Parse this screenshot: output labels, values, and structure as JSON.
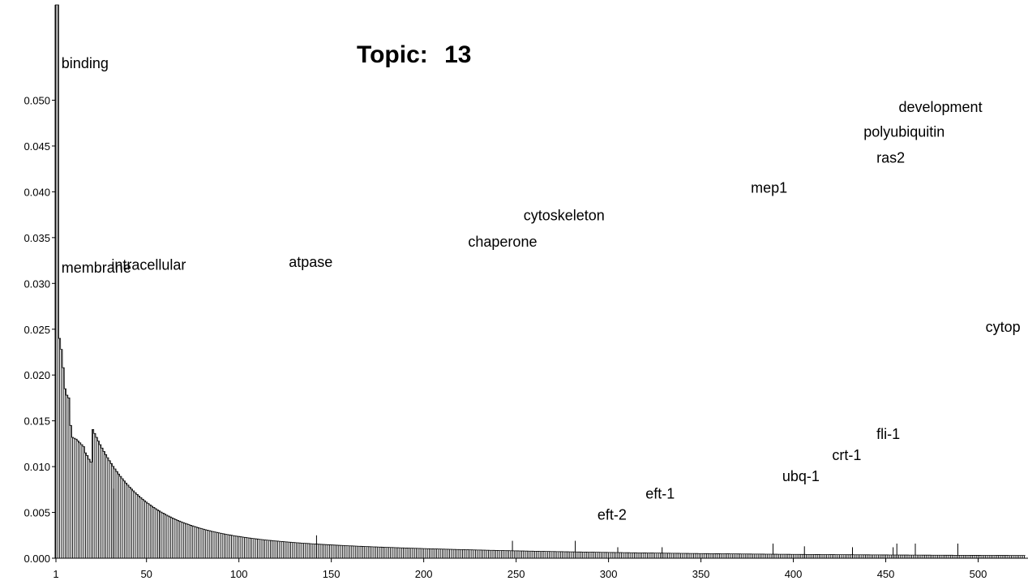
{
  "chart_data": {
    "type": "bar",
    "title_prefix": "Topic:",
    "title_number": "13",
    "xlim": [
      1,
      525
    ],
    "ylim": [
      0,
      0.055
    ],
    "x_ticks": [
      1,
      50,
      100,
      150,
      200,
      250,
      300,
      350,
      400,
      450,
      500
    ],
    "y_ticks": [
      {
        "value": 0.0,
        "label": "0.000"
      },
      {
        "value": 0.005,
        "label": "0.005"
      },
      {
        "value": 0.01,
        "label": "0.010"
      },
      {
        "value": 0.015,
        "label": "0.015"
      },
      {
        "value": 0.02,
        "label": "0.020"
      },
      {
        "value": 0.025,
        "label": "0.025"
      },
      {
        "value": 0.03,
        "label": "0.030"
      },
      {
        "value": 0.035,
        "label": "0.035"
      },
      {
        "value": 0.04,
        "label": "0.040"
      },
      {
        "value": 0.045,
        "label": "0.045"
      },
      {
        "value": 0.05,
        "label": "0.050"
      }
    ],
    "head_values": [
      0.3,
      0.12,
      0.024,
      0.0228,
      0.0208,
      0.0185,
      0.0178,
      0.0175,
      0.0145,
      0.0132,
      0.0131,
      0.013,
      0.0128,
      0.0126,
      0.0124,
      0.0122,
      0.0115,
      0.0112,
      0.0108,
      0.0105
    ],
    "labeled_words": [
      {
        "text": "binding",
        "x": 4,
        "y": 0.0535
      },
      {
        "text": "membrane",
        "x": 4,
        "y": 0.0312
      },
      {
        "text": "intracellular",
        "x": 31,
        "y": 0.0315
      },
      {
        "text": "atpase",
        "x": 127,
        "y": 0.0318
      },
      {
        "text": "chaperone",
        "x": 224,
        "y": 0.034
      },
      {
        "text": "cytoskeleton",
        "x": 254,
        "y": 0.0369
      },
      {
        "text": "mep1",
        "x": 377,
        "y": 0.0399
      },
      {
        "text": "ras2",
        "x": 445,
        "y": 0.0432
      },
      {
        "text": "polyubiquitin",
        "x": 438,
        "y": 0.046
      },
      {
        "text": "development",
        "x": 457,
        "y": 0.0487
      },
      {
        "text": "cytop",
        "x": 504,
        "y": 0.0247
      },
      {
        "text": "fli-1",
        "x": 445,
        "y": 0.013
      },
      {
        "text": "crt-1",
        "x": 421,
        "y": 0.0107
      },
      {
        "text": "ubq-1",
        "x": 394,
        "y": 0.0084
      },
      {
        "text": "eft-1",
        "x": 320,
        "y": 0.0065
      },
      {
        "text": "eft-2",
        "x": 294,
        "y": 0.0042
      }
    ],
    "spikes": [
      {
        "x": 32,
        "y": 0.0076
      },
      {
        "x": 57,
        "y": 0.0052
      },
      {
        "x": 142,
        "y": 0.0025
      },
      {
        "x": 248,
        "y": 0.0019
      },
      {
        "x": 282,
        "y": 0.0019
      },
      {
        "x": 305,
        "y": 0.0012
      },
      {
        "x": 329,
        "y": 0.0012
      },
      {
        "x": 389,
        "y": 0.0016
      },
      {
        "x": 406,
        "y": 0.0013
      },
      {
        "x": 432,
        "y": 0.0012
      },
      {
        "x": 454,
        "y": 0.0012
      },
      {
        "x": 456,
        "y": 0.0016
      },
      {
        "x": 466,
        "y": 0.0016
      },
      {
        "x": 489,
        "y": 0.0016
      }
    ]
  }
}
